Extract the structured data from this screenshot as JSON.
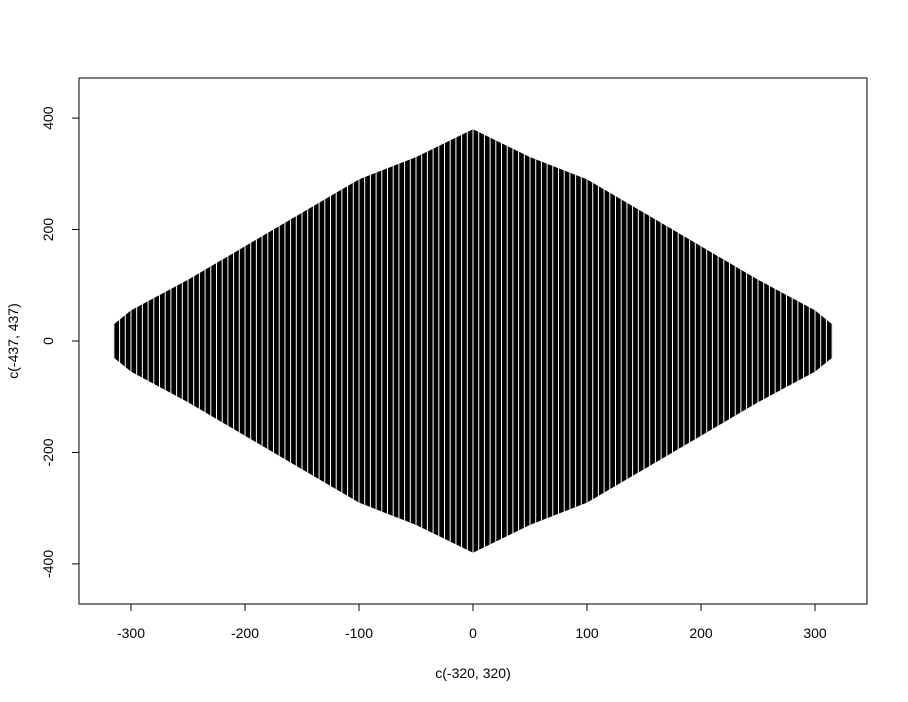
{
  "chart_data": {
    "type": "area",
    "title": "",
    "xlabel": "c(-320, 320)",
    "ylabel": "c(-437, 437)",
    "xlim": [
      -320,
      320
    ],
    "ylim": [
      -437,
      437
    ],
    "x_ticks": [
      -300,
      -200,
      -100,
      0,
      100,
      200,
      300
    ],
    "y_ticks": [
      -400,
      -200,
      0,
      200,
      400
    ],
    "x_tick_labels": [
      "-300",
      "-200",
      "-100",
      "0",
      "100",
      "200",
      "300"
    ],
    "y_tick_labels": [
      "-400",
      "-200",
      "0",
      "200",
      "400"
    ],
    "fill_color": "#000000",
    "stripe_color": "#ffffff",
    "grid": false,
    "shape": {
      "description_free": true,
      "x": [
        -315,
        -300,
        -250,
        -200,
        -150,
        -100,
        -50,
        0,
        50,
        100,
        150,
        200,
        250,
        300,
        315
      ],
      "y_upper": [
        30,
        55,
        110,
        170,
        230,
        290,
        330,
        380,
        330,
        290,
        230,
        170,
        110,
        55,
        30
      ],
      "y_lower": [
        -30,
        -55,
        -110,
        -170,
        -230,
        -290,
        -330,
        -380,
        -330,
        -290,
        -230,
        -170,
        -110,
        -55,
        -30
      ]
    }
  }
}
